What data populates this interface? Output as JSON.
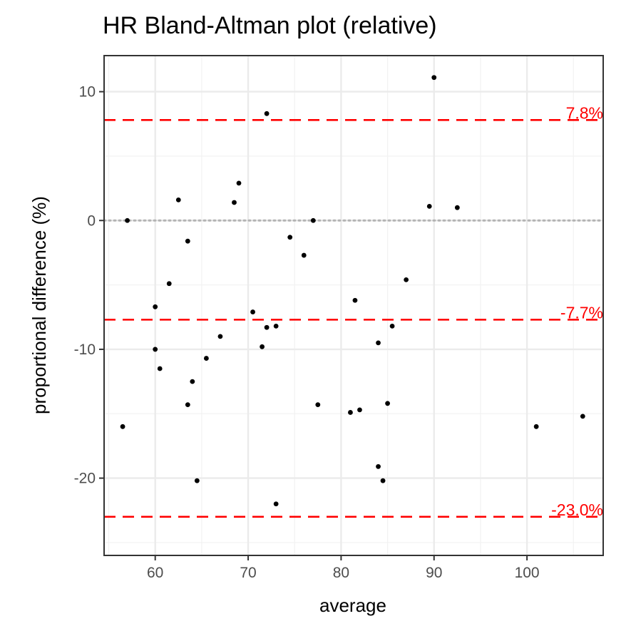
{
  "chart_data": {
    "type": "scatter",
    "title": "HR   Bland-Altman plot (relative)",
    "xlabel": "average",
    "ylabel": "proportional difference (%)",
    "xlim": [
      54.5,
      108.2
    ],
    "ylim": [
      -26.0,
      12.8
    ],
    "x_ticks": [
      60,
      70,
      80,
      90,
      100
    ],
    "x_tick_labels": [
      "60",
      "70",
      "80",
      "90",
      "100"
    ],
    "y_ticks": [
      10,
      0,
      -10,
      -20
    ],
    "y_tick_labels": [
      "10",
      "0",
      "-10",
      "-20"
    ],
    "grid": true,
    "zero_line": 0,
    "reference_lines": [
      {
        "value": 7.8,
        "label": "7.8%"
      },
      {
        "value": -7.7,
        "label": "-7.7%"
      },
      {
        "value": -23.0,
        "label": "-23.0%"
      }
    ],
    "points": [
      {
        "x": 57.0,
        "y": 0.0
      },
      {
        "x": 56.5,
        "y": -16.0
      },
      {
        "x": 60.0,
        "y": -6.7
      },
      {
        "x": 60.0,
        "y": -10.0
      },
      {
        "x": 60.5,
        "y": -11.5
      },
      {
        "x": 61.5,
        "y": -4.9
      },
      {
        "x": 62.5,
        "y": 1.6
      },
      {
        "x": 63.5,
        "y": -1.6
      },
      {
        "x": 63.5,
        "y": -14.3
      },
      {
        "x": 64.0,
        "y": -12.5
      },
      {
        "x": 64.5,
        "y": -20.2
      },
      {
        "x": 65.5,
        "y": -10.7
      },
      {
        "x": 67.0,
        "y": -9.0
      },
      {
        "x": 68.5,
        "y": 1.4
      },
      {
        "x": 69.0,
        "y": 2.9
      },
      {
        "x": 70.5,
        "y": -7.1
      },
      {
        "x": 71.5,
        "y": -9.8
      },
      {
        "x": 72.0,
        "y": 8.3
      },
      {
        "x": 72.0,
        "y": -8.3
      },
      {
        "x": 73.0,
        "y": -8.2
      },
      {
        "x": 73.0,
        "y": -22.0
      },
      {
        "x": 74.5,
        "y": -1.3
      },
      {
        "x": 76.0,
        "y": -2.7
      },
      {
        "x": 77.0,
        "y": 0.0
      },
      {
        "x": 77.5,
        "y": -14.3
      },
      {
        "x": 81.0,
        "y": -14.9
      },
      {
        "x": 81.5,
        "y": -6.2
      },
      {
        "x": 82.0,
        "y": -14.7
      },
      {
        "x": 84.0,
        "y": -9.5
      },
      {
        "x": 84.0,
        "y": -19.1
      },
      {
        "x": 84.5,
        "y": -20.2
      },
      {
        "x": 85.0,
        "y": -14.2
      },
      {
        "x": 85.5,
        "y": -8.2
      },
      {
        "x": 87.0,
        "y": -4.6
      },
      {
        "x": 89.5,
        "y": 1.1
      },
      {
        "x": 90.0,
        "y": 11.1
      },
      {
        "x": 92.5,
        "y": 1.0
      },
      {
        "x": 101.0,
        "y": -16.0
      },
      {
        "x": 106.0,
        "y": -15.2
      }
    ],
    "colors": {
      "points": "#000000",
      "reference_lines": "#ff0000",
      "zero_line": "#b3b3b3",
      "grid_major": "#ebebeb",
      "grid_minor": "#f2f2f2",
      "panel_border": "#333333",
      "ticks": "#333333",
      "tick_labels": "#4d4d4d"
    }
  }
}
